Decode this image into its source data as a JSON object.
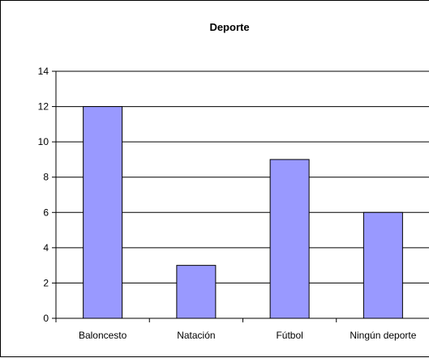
{
  "chart_data": {
    "type": "bar",
    "title": "Deporte",
    "xlabel": "",
    "ylabel": "",
    "categories": [
      "Baloncesto",
      "Natación",
      "Fútbol",
      "Ningún deporte"
    ],
    "values": [
      12,
      3,
      9,
      6
    ],
    "ylim": [
      0,
      14
    ],
    "yticks": [
      0,
      2,
      4,
      6,
      8,
      10,
      12,
      14
    ],
    "grid": true,
    "legend": "none",
    "bar_color": "#9999FF",
    "bar_border_color": "#000000"
  }
}
